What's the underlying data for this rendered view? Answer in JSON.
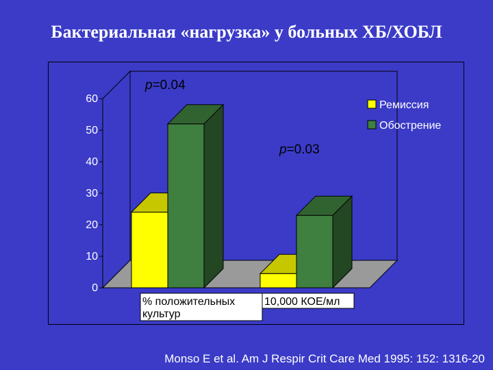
{
  "slide": {
    "title": "Бактериальная «нагрузка» у больных ХБ/ХОБЛ",
    "citation": "Monso E et al. Am J Respir Crit Care Med 1995: 152: 1316-20"
  },
  "colors": {
    "background": "#3b3bc8",
    "remission": "#ffff00",
    "exacerbation": "#3f7f3f"
  },
  "chart_data": {
    "type": "bar",
    "categories": [
      "% положительных культур",
      "10,000 КОЕ/мл"
    ],
    "series": [
      {
        "name": "Ремиссия",
        "values": [
          24,
          4.5
        ]
      },
      {
        "name": "Обострение",
        "values": [
          52,
          23
        ]
      }
    ],
    "ylim": [
      0,
      60
    ],
    "yticks": [
      0,
      10,
      20,
      30,
      40,
      50,
      60
    ],
    "annotations": [
      "p=0.04",
      "p=0.03"
    ],
    "legend_position": "top-right",
    "grid": false
  }
}
